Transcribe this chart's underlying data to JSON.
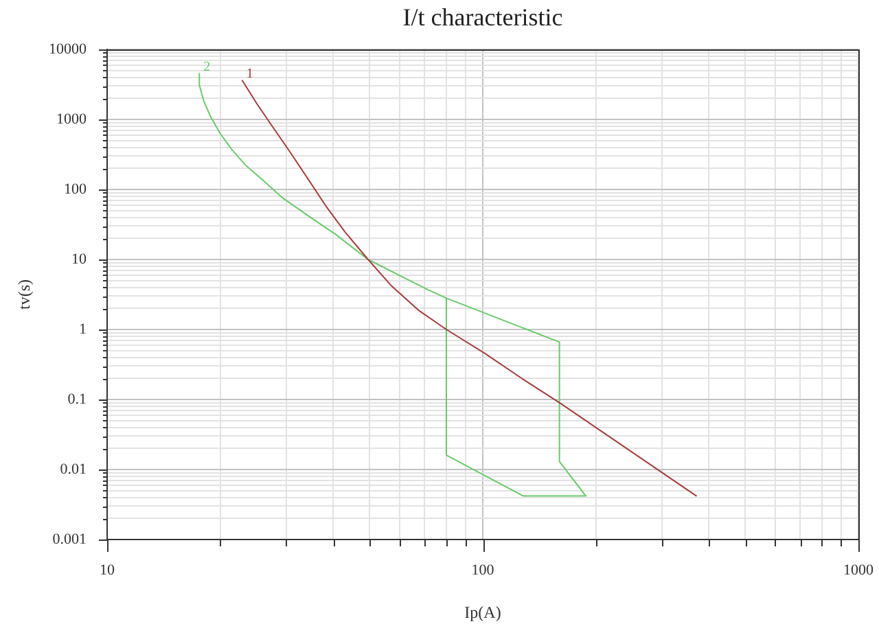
{
  "chart_data": {
    "type": "line",
    "title": "I/t characteristic",
    "xlabel": "Ip(A)",
    "ylabel": "tv(s)",
    "log": "xy",
    "xlim": [
      10,
      1000
    ],
    "ylim": [
      0.001,
      10000
    ],
    "xticks": [
      10,
      {
        "value": 20,
        "label": null
      },
      {
        "value": 30,
        "label": null
      },
      {
        "value": 40,
        "label": null
      },
      {
        "value": 50,
        "label": null
      },
      {
        "value": 60,
        "label": null
      },
      {
        "value": 70,
        "label": null
      },
      {
        "value": 80,
        "label": null
      },
      {
        "value": 90,
        "label": null
      },
      100,
      {
        "value": 200,
        "label": null
      },
      {
        "value": 300,
        "label": null
      },
      {
        "value": 400,
        "label": null
      },
      {
        "value": 500,
        "label": null
      },
      {
        "value": 600,
        "label": null
      },
      {
        "value": 700,
        "label": null
      },
      {
        "value": 800,
        "label": null
      },
      {
        "value": 900,
        "label": null
      },
      1000
    ],
    "yticks": [
      0.001,
      {
        "value": 0.002,
        "label": null
      },
      {
        "value": 0.003,
        "label": null
      },
      {
        "value": 0.004,
        "label": null
      },
      {
        "value": 0.005,
        "label": null
      },
      {
        "value": 0.006,
        "label": null
      },
      {
        "value": 0.007,
        "label": null
      },
      {
        "value": 0.008,
        "label": null
      },
      {
        "value": 0.009,
        "label": null
      },
      0.01,
      {
        "value": 0.02,
        "label": null
      },
      {
        "value": 0.03,
        "label": null
      },
      {
        "value": 0.04,
        "label": null
      },
      {
        "value": 0.05,
        "label": null
      },
      {
        "value": 0.06,
        "label": null
      },
      {
        "value": 0.07,
        "label": null
      },
      {
        "value": 0.08,
        "label": null
      },
      {
        "value": 0.09,
        "label": null
      },
      0.1,
      {
        "value": 0.2,
        "label": null
      },
      {
        "value": 0.3,
        "label": null
      },
      {
        "value": 0.4,
        "label": null
      },
      {
        "value": 0.5,
        "label": null
      },
      {
        "value": 0.6,
        "label": null
      },
      {
        "value": 0.7,
        "label": null
      },
      {
        "value": 0.8,
        "label": null
      },
      {
        "value": 0.9,
        "label": null
      },
      1,
      {
        "value": 2,
        "label": null
      },
      {
        "value": 3,
        "label": null
      },
      {
        "value": 4,
        "label": null
      },
      {
        "value": 5,
        "label": null
      },
      {
        "value": 6,
        "label": null
      },
      {
        "value": 7,
        "label": null
      },
      {
        "value": 8,
        "label": null
      },
      {
        "value": 9,
        "label": null
      },
      10,
      {
        "value": 20,
        "label": null
      },
      {
        "value": 30,
        "label": null
      },
      {
        "value": 40,
        "label": null
      },
      {
        "value": 50,
        "label": null
      },
      {
        "value": 60,
        "label": null
      },
      {
        "value": 70,
        "label": null
      },
      {
        "value": 80,
        "label": null
      },
      {
        "value": 90,
        "label": null
      },
      100,
      {
        "value": 200,
        "label": null
      },
      {
        "value": 300,
        "label": null
      },
      {
        "value": 400,
        "label": null
      },
      {
        "value": 500,
        "label": null
      },
      {
        "value": 600,
        "label": null
      },
      {
        "value": 700,
        "label": null
      },
      {
        "value": 800,
        "label": null
      },
      {
        "value": 900,
        "label": null
      },
      1000,
      {
        "value": 2000,
        "label": null
      },
      {
        "value": 3000,
        "label": null
      },
      {
        "value": 4000,
        "label": null
      },
      {
        "value": 5000,
        "label": null
      },
      {
        "value": 6000,
        "label": null
      },
      {
        "value": 7000,
        "label": null
      },
      {
        "value": 8000,
        "label": null
      },
      {
        "value": 9000,
        "label": null
      },
      10000
    ],
    "grid": true,
    "marker": "none",
    "line_style": "solid",
    "series": [
      {
        "name": "1",
        "color": "#a83a3a",
        "x": [
          22.9,
          25,
          27.3,
          30.6,
          34.3,
          38.4,
          42.9,
          49.5,
          56.9,
          67.3,
          80,
          101,
          127,
          160,
          370
        ],
        "values": [
          3600,
          1700,
          850,
          350,
          140,
          56,
          25,
          10,
          4.3,
          1.9,
          1,
          0.46,
          0.2,
          0.09,
          0.0042
        ]
      },
      {
        "name": "2",
        "color": "#66cc66",
        "x": [
          17.6,
          17.6,
          18.1,
          18.9,
          20,
          21.5,
          23.4,
          25.8,
          29.3,
          34.3,
          40.5,
          49.5,
          60.1,
          71.5,
          80,
          160,
          160,
          188,
          128,
          80,
          80
        ],
        "values": [
          4500,
          3100,
          1800,
          1070,
          630,
          370,
          220,
          140,
          76,
          42,
          23,
          10,
          5.9,
          3.7,
          2.8,
          0.66,
          0.013,
          0.0042,
          0.0042,
          0.016,
          2.8
        ]
      }
    ]
  }
}
